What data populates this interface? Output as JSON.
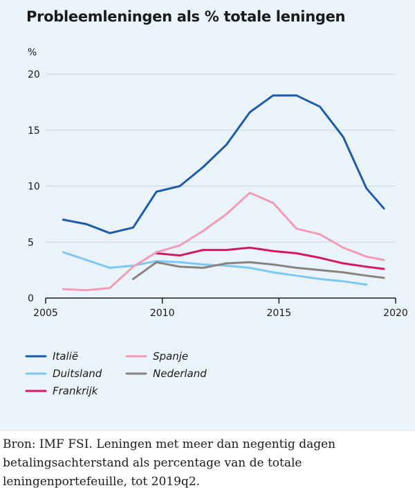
{
  "chart_data": {
    "type": "line",
    "title": "Probleemleningen als % totale leningen",
    "ylabel": "%",
    "xlabel": "",
    "xlim": [
      2005,
      2020
    ],
    "ylim": [
      0,
      20
    ],
    "x_ticks": [
      2005,
      2010,
      2015,
      2020
    ],
    "y_ticks": [
      0,
      5,
      10,
      15,
      20
    ],
    "grid": true,
    "legend_position": "bottom-left",
    "series": [
      {
        "name": "Italië",
        "color": "#1f5ba8",
        "x": [
          2005.75,
          2006.75,
          2007.75,
          2008.75,
          2009.75,
          2010.75,
          2011.75,
          2012.75,
          2013.75,
          2014.75,
          2015.75,
          2016.75,
          2017.75,
          2018.75,
          2019.5
        ],
        "y": [
          7.0,
          6.6,
          5.8,
          6.3,
          9.5,
          10.0,
          11.7,
          13.7,
          16.6,
          18.1,
          18.1,
          17.1,
          14.4,
          9.8,
          8.0
        ]
      },
      {
        "name": "Duitsland",
        "color": "#7fc8f0",
        "x": [
          2005.75,
          2006.75,
          2007.75,
          2008.75,
          2009.75,
          2010.75,
          2011.75,
          2012.75,
          2013.75,
          2014.75,
          2015.75,
          2016.75,
          2017.75,
          2018.75
        ],
        "y": [
          4.1,
          3.4,
          2.7,
          2.9,
          3.3,
          3.2,
          3.0,
          2.9,
          2.7,
          2.3,
          2.0,
          1.7,
          1.5,
          1.2
        ]
      },
      {
        "name": "Frankrijk",
        "color": "#d6175f",
        "x": [
          2009.75,
          2010.75,
          2011.75,
          2012.75,
          2013.75,
          2014.75,
          2015.75,
          2016.75,
          2017.75,
          2018.75,
          2019.5
        ],
        "y": [
          4.0,
          3.8,
          4.3,
          4.3,
          4.5,
          4.2,
          4.0,
          3.6,
          3.1,
          2.8,
          2.6
        ]
      },
      {
        "name": "Spanje",
        "color": "#f29bb4",
        "x": [
          2005.75,
          2006.75,
          2007.75,
          2008.75,
          2009.75,
          2010.75,
          2011.75,
          2012.75,
          2013.75,
          2014.75,
          2015.75,
          2016.75,
          2017.75,
          2018.75,
          2019.5
        ],
        "y": [
          0.8,
          0.7,
          0.9,
          2.8,
          4.1,
          4.7,
          6.0,
          7.5,
          9.4,
          8.5,
          6.2,
          5.7,
          4.5,
          3.7,
          3.4
        ]
      },
      {
        "name": "Nederland",
        "color": "#8a8282",
        "x": [
          2008.75,
          2009.75,
          2010.75,
          2011.75,
          2012.75,
          2013.75,
          2014.75,
          2015.75,
          2016.75,
          2017.75,
          2018.75,
          2019.5
        ],
        "y": [
          1.7,
          3.2,
          2.8,
          2.7,
          3.1,
          3.2,
          3.0,
          2.7,
          2.5,
          2.3,
          2.0,
          1.8
        ]
      }
    ]
  },
  "caption": "Bron: IMF FSI. Leningen met meer dan negentig dagen betalingsachterstand als percentage van de totale leningenportefeuille, tot 2019q2."
}
